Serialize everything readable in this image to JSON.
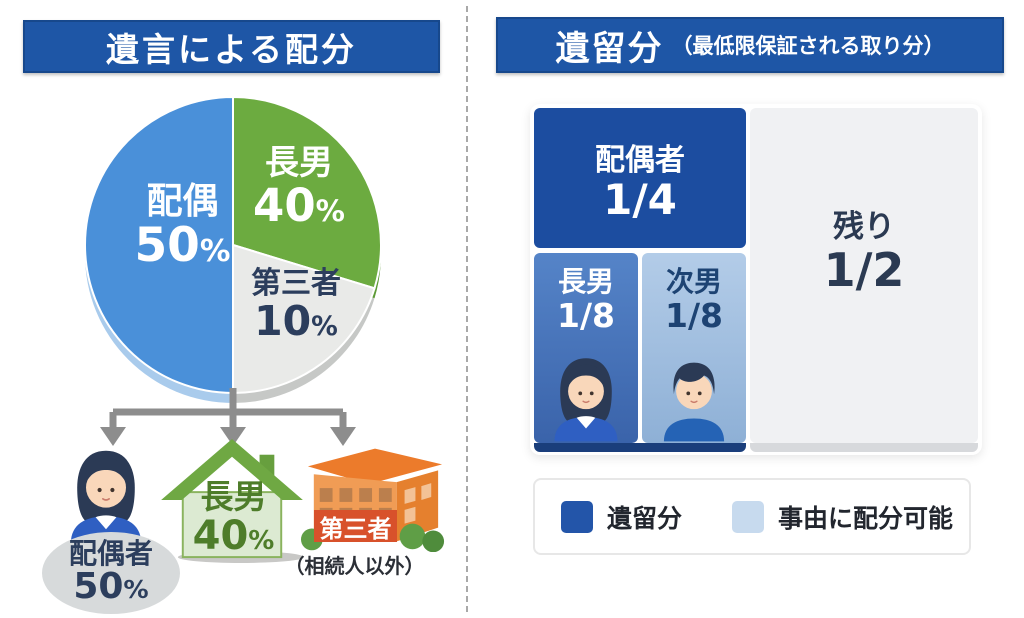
{
  "left_panel": {
    "title": "遺言による配分",
    "recipients": {
      "spouse": {
        "label": "配偶者",
        "value": "50",
        "unit": "%"
      },
      "eldest_son": {
        "label": "長男",
        "value": "40",
        "unit": "%"
      },
      "third_party": {
        "banner": "第三者",
        "note": "（相続人以外）"
      }
    }
  },
  "right_panel": {
    "title": "遺留分",
    "subtitle": "（最低限保証される取り分）",
    "legend": [
      {
        "label": "遺留分",
        "color": "#2355a9"
      },
      {
        "label": "事由に配分可能",
        "color": "#c7daee"
      }
    ]
  },
  "colors": {
    "title_bar": "#1e56a6",
    "pie_blue": "#4a90d9",
    "pie_green": "#6cab40",
    "pie_gray": "#e9eae8",
    "navy_text": "#2c3e5d",
    "arrow_gray": "#8d8d8d",
    "banner_red": "#d8512b"
  },
  "chart_data": [
    {
      "type": "pie",
      "title": "遺言による配分",
      "unit": "%",
      "slices": [
        {
          "label": "長男",
          "value": "40",
          "pct": 40,
          "unit": "%",
          "color": "#6cab40",
          "depth_color": "#5d9a36",
          "start_deg": 0,
          "end_deg": 107
        },
        {
          "label": "第三者",
          "value": "10",
          "pct": 10,
          "unit": "%",
          "color": "#e9eae8",
          "depth_color": "#c6c8c6",
          "start_deg": 107,
          "end_deg": 180
        },
        {
          "label": "配偶",
          "value": "50",
          "pct": 50,
          "unit": "%",
          "color": "#4a90d9",
          "depth_color": "#a9cbec",
          "start_deg": 180,
          "end_deg": 360
        }
      ],
      "annotations": [
        "配偶者 50%",
        "長男 40%",
        "第三者（相続人以外）"
      ]
    },
    {
      "type": "treemap",
      "title": "遺留分（最低限保証される取り分）",
      "items": [
        {
          "label": "配偶者",
          "fraction": "1/4",
          "value": 0.25,
          "category": "遺留分",
          "color": "#1c4da0",
          "text_color": "#ffffff"
        },
        {
          "label": "長男",
          "fraction": "1/8",
          "value": 0.125,
          "category": "遺留分",
          "color": "#3a63aa",
          "color_top": "#5584c8",
          "text_color": "#ffffff"
        },
        {
          "label": "次男",
          "fraction": "1/8",
          "value": 0.125,
          "category": "遺留分",
          "color": "#8eb0d6",
          "color_top": "#b3cce8",
          "text_color": "#1d4373"
        },
        {
          "label": "残り",
          "fraction": "1/2",
          "value": 0.5,
          "category": "事由に配分可能",
          "color": "#f0f1f3",
          "text_color": "#2b3a52"
        }
      ],
      "legend": [
        "遺留分",
        "事由に配分可能"
      ]
    }
  ]
}
